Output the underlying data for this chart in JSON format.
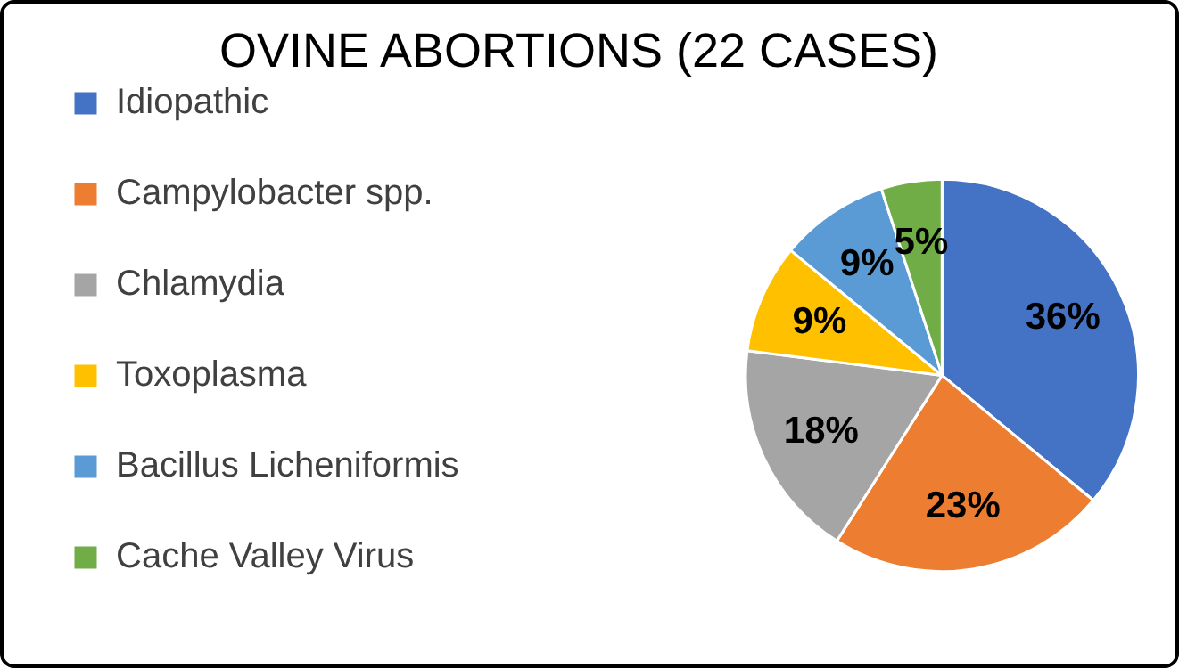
{
  "chart_data": {
    "type": "pie",
    "title": "OVINE ABORTIONS (22 CASES)",
    "categories": [
      "Idiopathic",
      "Campylobacter spp.",
      "Chlamydia",
      "Toxoplasma",
      "Bacillus Licheniformis",
      "Cache Valley Virus"
    ],
    "values": [
      36,
      23,
      18,
      9,
      9,
      5
    ],
    "colors": [
      "#4472c4",
      "#ed7d31",
      "#a5a5a5",
      "#ffc000",
      "#5b9bd5",
      "#70ad47"
    ],
    "value_labels": [
      "36%",
      "23%",
      "18%",
      "9%",
      "9%",
      "5%"
    ],
    "legend": "left"
  }
}
